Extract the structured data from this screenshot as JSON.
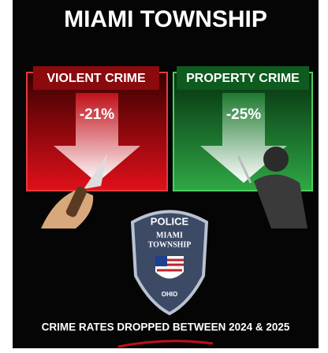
{
  "title": "MIAMI TOWNSHIP",
  "panels": [
    {
      "label": "VIOLENT CRIME",
      "change": "-21%"
    },
    {
      "label": "PROPERTY CRIME",
      "change": "-25%"
    }
  ],
  "badge": {
    "top": "POLICE",
    "name": "MIAMI",
    "name2": "TOWNSHIP",
    "state": "OHIO"
  },
  "footer": "CRIME RATES DROPPED BETWEEN 2024 & 2025"
}
